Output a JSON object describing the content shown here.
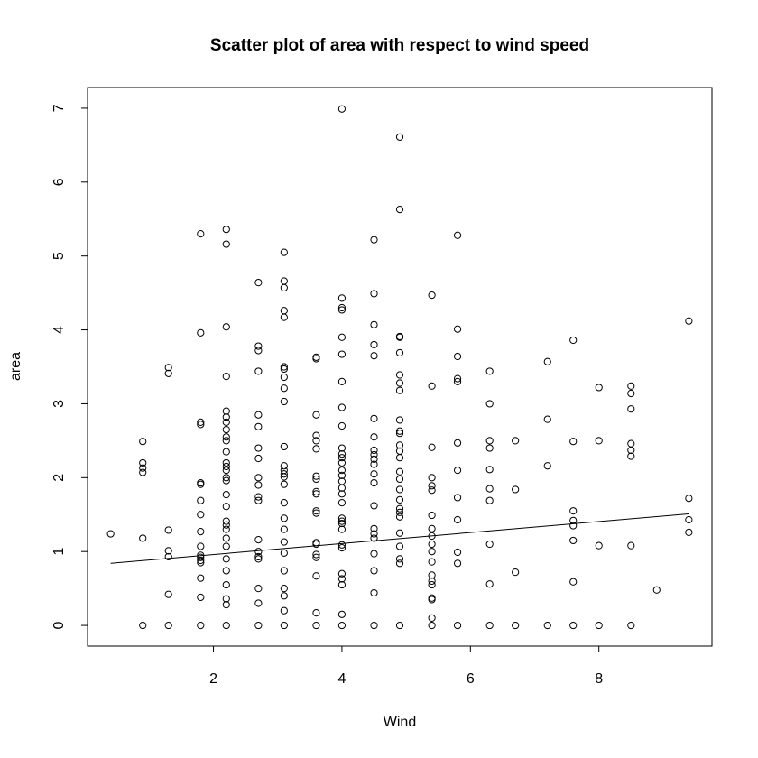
{
  "chart_data": {
    "type": "scatter",
    "title": "Scatter plot of area with respect to wind speed",
    "x_label": "Wind",
    "y_label": "area",
    "xlim": [
      0.04,
      9.76
    ],
    "ylim": [
      -0.28,
      7.28
    ],
    "xticks": [
      2,
      4,
      6,
      8
    ],
    "yticks": [
      0,
      1,
      2,
      3,
      4,
      5,
      6,
      7
    ],
    "color": "#000000",
    "x": [
      0.4,
      0.9,
      0.9,
      0.9,
      0.9,
      0.9,
      0.9,
      1.3,
      1.3,
      1.3,
      1.3,
      1.3,
      1.3,
      1.3,
      1.8,
      1.8,
      1.8,
      1.8,
      1.8,
      1.8,
      1.8,
      1.8,
      1.8,
      1.8,
      1.8,
      1.8,
      1.8,
      1.8,
      1.8,
      1.8,
      1.8,
      2.2,
      2.2,
      2.2,
      2.2,
      2.2,
      2.2,
      2.2,
      2.2,
      2.2,
      2.2,
      2.2,
      2.2,
      2.2,
      2.2,
      2.2,
      2.2,
      2.2,
      2.2,
      2.2,
      2.2,
      2.2,
      2.2,
      2.2,
      2.2,
      2.2,
      2.2,
      2.2,
      2.2,
      2.2,
      2.7,
      2.7,
      2.7,
      2.7,
      2.7,
      2.7,
      2.7,
      2.7,
      2.7,
      2.7,
      2.7,
      2.7,
      2.7,
      2.7,
      2.7,
      2.7,
      2.7,
      2.7,
      2.7,
      3.1,
      3.1,
      3.1,
      3.1,
      3.1,
      3.1,
      3.1,
      3.1,
      3.1,
      3.1,
      3.1,
      3.1,
      3.1,
      3.1,
      3.1,
      3.1,
      3.1,
      3.1,
      3.1,
      3.1,
      3.1,
      3.1,
      3.1,
      3.1,
      3.1,
      3.1,
      3.6,
      3.6,
      3.6,
      3.6,
      3.6,
      3.6,
      3.6,
      3.6,
      3.6,
      3.6,
      3.6,
      3.6,
      3.6,
      3.6,
      3.6,
      3.6,
      3.6,
      3.6,
      3.6,
      4.0,
      4.0,
      4.0,
      4.0,
      4.0,
      4.0,
      4.0,
      4.0,
      4.0,
      4.0,
      4.0,
      4.0,
      4.0,
      4.0,
      4.0,
      4.0,
      4.0,
      4.0,
      4.0,
      4.0,
      4.0,
      4.0,
      4.0,
      4.0,
      4.0,
      4.0,
      4.0,
      4.0,
      4.0,
      4.0,
      4.5,
      4.5,
      4.5,
      4.5,
      4.5,
      4.5,
      4.5,
      4.5,
      4.5,
      4.5,
      4.5,
      4.5,
      4.5,
      4.5,
      4.5,
      4.5,
      4.5,
      4.5,
      4.5,
      4.5,
      4.5,
      4.9,
      4.9,
      4.9,
      4.9,
      4.9,
      4.9,
      4.9,
      4.9,
      4.9,
      4.9,
      4.9,
      4.9,
      4.9,
      4.9,
      4.9,
      4.9,
      4.9,
      4.9,
      4.9,
      4.9,
      4.9,
      4.9,
      4.9,
      4.9,
      4.9,
      4.9,
      5.4,
      5.4,
      5.4,
      5.4,
      5.4,
      5.4,
      5.4,
      5.4,
      5.4,
      5.4,
      5.4,
      5.4,
      5.4,
      5.4,
      5.4,
      5.4,
      5.4,
      5.4,
      5.4,
      5.8,
      5.8,
      5.8,
      5.8,
      5.8,
      5.8,
      5.8,
      5.8,
      5.8,
      5.8,
      5.8,
      5.8,
      6.3,
      6.3,
      6.3,
      6.3,
      6.3,
      6.3,
      6.3,
      6.3,
      6.3,
      6.3,
      6.7,
      6.7,
      6.7,
      6.7,
      7.2,
      7.2,
      7.2,
      7.2,
      7.6,
      7.6,
      7.6,
      7.6,
      7.6,
      7.6,
      7.6,
      7.6,
      8.0,
      8.0,
      8.0,
      8.0,
      8.5,
      8.5,
      8.5,
      8.5,
      8.5,
      8.5,
      8.5,
      8.5,
      8.9,
      9.4,
      9.4,
      9.4,
      9.4
    ],
    "y": [
      1.24,
      0,
      1.18,
      2.07,
      2.13,
      2.2,
      2.49,
      0,
      0.42,
      0.93,
      1.01,
      1.29,
      3.41,
      3.49,
      0,
      0.38,
      0.64,
      0.85,
      0.88,
      0.92,
      0.95,
      1.07,
      1.27,
      1.5,
      1.69,
      1.91,
      1.93,
      2.72,
      2.75,
      3.96,
      5.3,
      0,
      0.28,
      0.36,
      0.55,
      0.74,
      0.9,
      1.07,
      1.18,
      1.3,
      1.36,
      1.41,
      1.61,
      1.77,
      1.96,
      2.0,
      2.1,
      2.15,
      2.2,
      2.35,
      2.5,
      2.55,
      2.65,
      2.75,
      2.82,
      2.9,
      3.37,
      4.04,
      5.16,
      5.36,
      0,
      0.3,
      0.5,
      0.9,
      0.93,
      1.0,
      1.16,
      1.69,
      1.74,
      1.9,
      2.0,
      2.26,
      2.4,
      2.69,
      2.85,
      3.44,
      3.72,
      3.78,
      4.64,
      0,
      0.2,
      0.4,
      0.5,
      0.74,
      0.98,
      1.13,
      1.3,
      1.45,
      1.66,
      1.91,
      2.01,
      2.05,
      2.1,
      2.16,
      2.42,
      3.03,
      3.21,
      3.36,
      3.47,
      3.5,
      4.17,
      4.26,
      4.57,
      4.66,
      5.05,
      0,
      0.17,
      0.67,
      0.92,
      0.96,
      1.1,
      1.12,
      1.52,
      1.55,
      1.78,
      1.81,
      1.98,
      2.02,
      2.39,
      2.5,
      2.57,
      2.85,
      3.61,
      3.63,
      0,
      0.15,
      0.55,
      0.63,
      0.7,
      1.05,
      1.09,
      1.3,
      1.38,
      1.41,
      1.45,
      1.66,
      1.78,
      1.86,
      1.95,
      2.03,
      2.1,
      2.2,
      2.27,
      2.32,
      2.4,
      2.7,
      2.95,
      3.3,
      3.67,
      3.9,
      4.27,
      4.3,
      4.43,
      6.99,
      0,
      0.44,
      0.74,
      0.97,
      1.18,
      1.24,
      1.31,
      1.62,
      1.93,
      2.05,
      2.18,
      2.25,
      2.31,
      2.37,
      2.55,
      2.8,
      3.65,
      3.8,
      4.07,
      4.49,
      5.22,
      0,
      0.84,
      0.9,
      1.07,
      1.25,
      1.47,
      1.53,
      1.58,
      1.7,
      1.84,
      1.98,
      2.08,
      2.27,
      2.36,
      2.44,
      2.6,
      2.63,
      2.78,
      3.18,
      3.28,
      3.39,
      3.69,
      3.9,
      3.91,
      5.63,
      6.61,
      0,
      0.1,
      0.35,
      0.37,
      0.55,
      0.6,
      0.68,
      0.86,
      1.0,
      1.1,
      1.21,
      1.31,
      1.49,
      1.83,
      1.89,
      2.0,
      2.41,
      3.24,
      4.47,
      0,
      0.84,
      0.99,
      1.43,
      1.73,
      2.1,
      2.47,
      3.3,
      3.34,
      3.64,
      4.01,
      5.28,
      0,
      0.56,
      1.1,
      1.69,
      1.85,
      2.11,
      2.4,
      2.5,
      3.0,
      3.44,
      0,
      0.72,
      1.84,
      2.5,
      0,
      2.16,
      2.79,
      3.57,
      0,
      0.59,
      1.15,
      1.35,
      1.42,
      1.55,
      2.49,
      3.86,
      0,
      1.08,
      2.5,
      3.22,
      0,
      1.08,
      2.29,
      2.37,
      2.46,
      2.93,
      3.14,
      3.24,
      0.48,
      1.26,
      1.43,
      1.72,
      4.12
    ],
    "trend_line": {
      "x": [
        0.4,
        9.4
      ],
      "y": [
        0.84,
        1.51
      ]
    }
  }
}
